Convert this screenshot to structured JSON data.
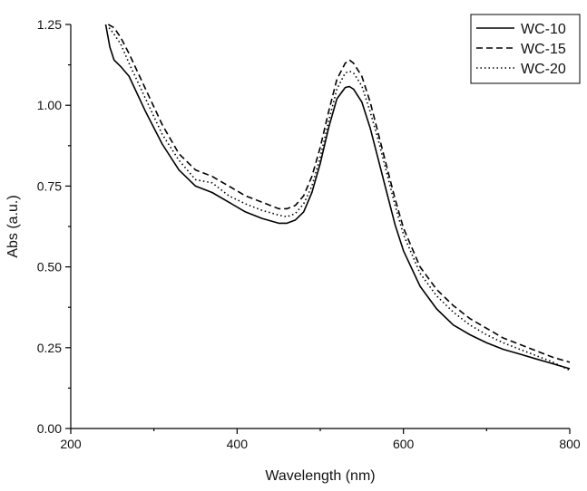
{
  "chart_data": {
    "type": "line",
    "title": "",
    "xlabel": "Wavelength (nm)",
    "ylabel": "Abs (a.u.)",
    "xlim": [
      200,
      800
    ],
    "ylim": [
      0,
      1.25
    ],
    "x_ticks": [
      200,
      400,
      600,
      800
    ],
    "x_tick_labels": [
      "200",
      "400",
      "600",
      "800"
    ],
    "y_ticks": [
      0,
      0.25,
      0.5,
      0.75,
      1.0,
      1.25
    ],
    "y_tick_labels": [
      "0.00",
      "0.25",
      "0.50",
      "0.75",
      "1.00",
      "1.25"
    ],
    "grid": false,
    "legend_position": "top-right",
    "series": [
      {
        "name": "WC-10",
        "dash": "solid",
        "color": "#000000",
        "x": [
          242,
          247,
          252,
          260,
          270,
          290,
          310,
          330,
          350,
          370,
          390,
          410,
          430,
          450,
          460,
          470,
          480,
          490,
          500,
          510,
          520,
          530,
          535,
          540,
          550,
          560,
          570,
          580,
          590,
          600,
          620,
          640,
          660,
          680,
          700,
          720,
          740,
          760,
          780,
          800
        ],
        "y": [
          1.25,
          1.18,
          1.14,
          1.12,
          1.09,
          0.98,
          0.88,
          0.8,
          0.75,
          0.73,
          0.7,
          0.67,
          0.65,
          0.635,
          0.635,
          0.645,
          0.67,
          0.73,
          0.82,
          0.93,
          1.02,
          1.055,
          1.058,
          1.05,
          1.01,
          0.93,
          0.83,
          0.73,
          0.63,
          0.55,
          0.44,
          0.37,
          0.32,
          0.29,
          0.265,
          0.245,
          0.23,
          0.215,
          0.2,
          0.185
        ]
      },
      {
        "name": "WC-15",
        "dash": "dashed",
        "color": "#000000",
        "x": [
          245,
          252,
          260,
          270,
          290,
          310,
          330,
          350,
          370,
          390,
          410,
          430,
          450,
          460,
          470,
          480,
          490,
          500,
          510,
          520,
          530,
          535,
          540,
          550,
          560,
          570,
          580,
          590,
          600,
          620,
          640,
          660,
          680,
          700,
          720,
          740,
          760,
          780,
          800
        ],
        "y": [
          1.25,
          1.24,
          1.21,
          1.16,
          1.05,
          0.94,
          0.85,
          0.8,
          0.78,
          0.75,
          0.72,
          0.7,
          0.68,
          0.68,
          0.69,
          0.72,
          0.78,
          0.87,
          0.98,
          1.08,
          1.13,
          1.14,
          1.13,
          1.09,
          1.01,
          0.91,
          0.81,
          0.71,
          0.62,
          0.5,
          0.43,
          0.38,
          0.34,
          0.31,
          0.28,
          0.26,
          0.24,
          0.22,
          0.205
        ]
      },
      {
        "name": "WC-20",
        "dash": "dotted",
        "color": "#000000",
        "x": [
          246,
          252,
          260,
          270,
          290,
          310,
          330,
          350,
          370,
          390,
          410,
          430,
          450,
          460,
          470,
          480,
          490,
          500,
          510,
          520,
          530,
          535,
          540,
          550,
          560,
          570,
          580,
          590,
          600,
          620,
          640,
          660,
          680,
          700,
          720,
          740,
          760,
          780,
          800
        ],
        "y": [
          1.24,
          1.22,
          1.19,
          1.13,
          1.02,
          0.91,
          0.83,
          0.77,
          0.76,
          0.72,
          0.695,
          0.675,
          0.66,
          0.655,
          0.665,
          0.695,
          0.75,
          0.84,
          0.95,
          1.05,
          1.1,
          1.105,
          1.1,
          1.06,
          0.98,
          0.89,
          0.79,
          0.69,
          0.6,
          0.48,
          0.41,
          0.36,
          0.32,
          0.29,
          0.265,
          0.245,
          0.225,
          0.205,
          0.18
        ]
      }
    ]
  }
}
